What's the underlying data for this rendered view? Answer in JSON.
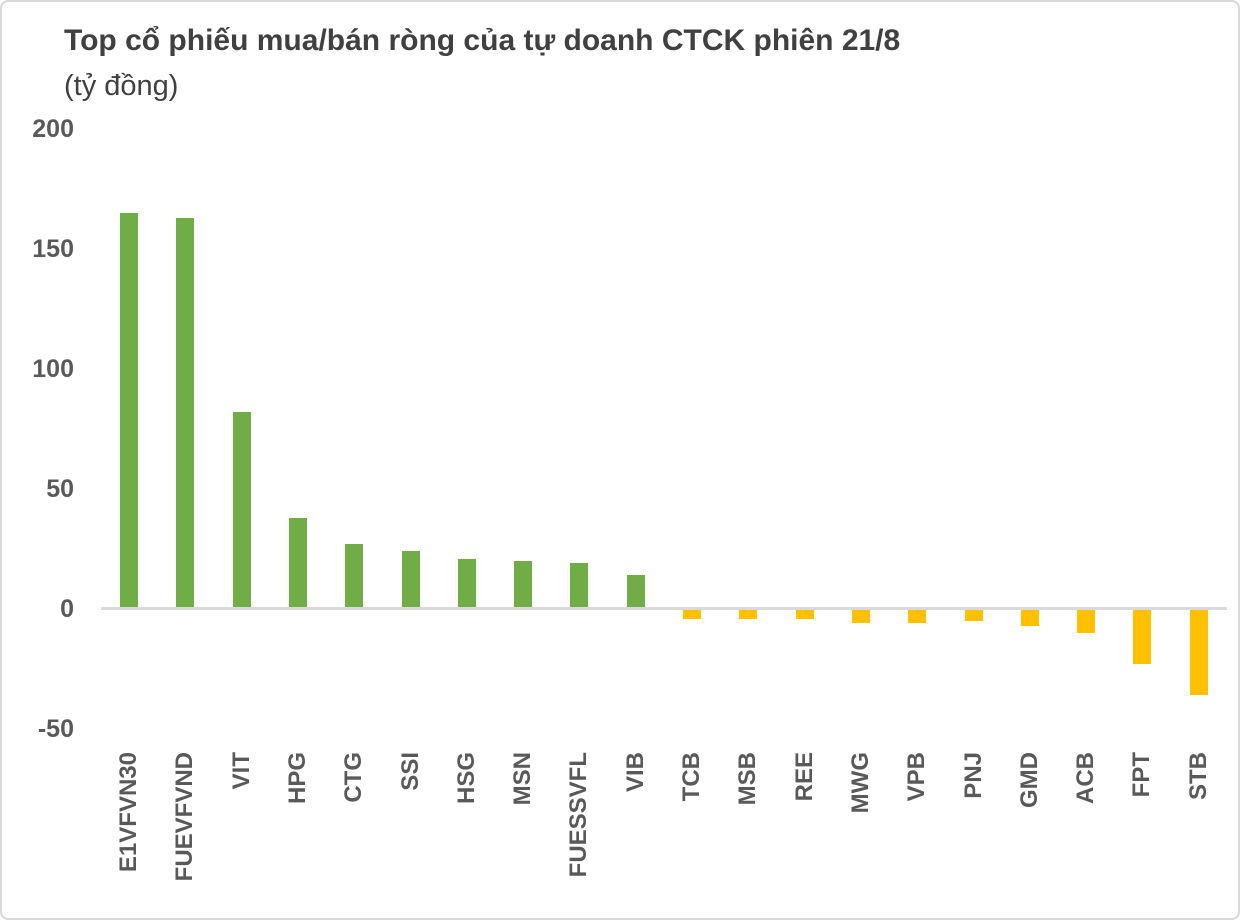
{
  "header": {
    "title": "Top cổ phiếu mua/bán ròng của tự doanh CTCK phiên 21/8",
    "subtitle": "(tỷ đồng)"
  },
  "chart_data": {
    "type": "bar",
    "title": "Top cổ phiếu mua/bán ròng của tự doanh CTCK phiên 21/8",
    "unit_label": "(tỷ đồng)",
    "categories": [
      "E1VFVN30",
      "FUEVFVND",
      "VIT",
      "HPG",
      "CTG",
      "SSI",
      "HSG",
      "MSN",
      "FUESSVFL",
      "VIB",
      "TCB",
      "MSB",
      "REE",
      "MWG",
      "VPB",
      "PNJ",
      "GMD",
      "ACB",
      "FPT",
      "STB"
    ],
    "values": [
      165,
      163,
      82,
      38,
      27,
      24,
      21,
      20,
      19,
      14,
      -4,
      -4,
      -4,
      -6,
      -6,
      -5,
      -7,
      -10,
      -23,
      -36
    ],
    "yticks": [
      200,
      150,
      100,
      50,
      0,
      -50
    ],
    "ylim": [
      -50,
      200
    ],
    "xlabel": "",
    "ylabel": "",
    "grid": false,
    "legend": "none",
    "x_label_rotation": 90,
    "colors": {
      "positive": "#70AD47",
      "negative": "#FFC000",
      "axis_line": "#D9D9D9",
      "tick_text": "#595959",
      "title_text": "#404040"
    }
  }
}
